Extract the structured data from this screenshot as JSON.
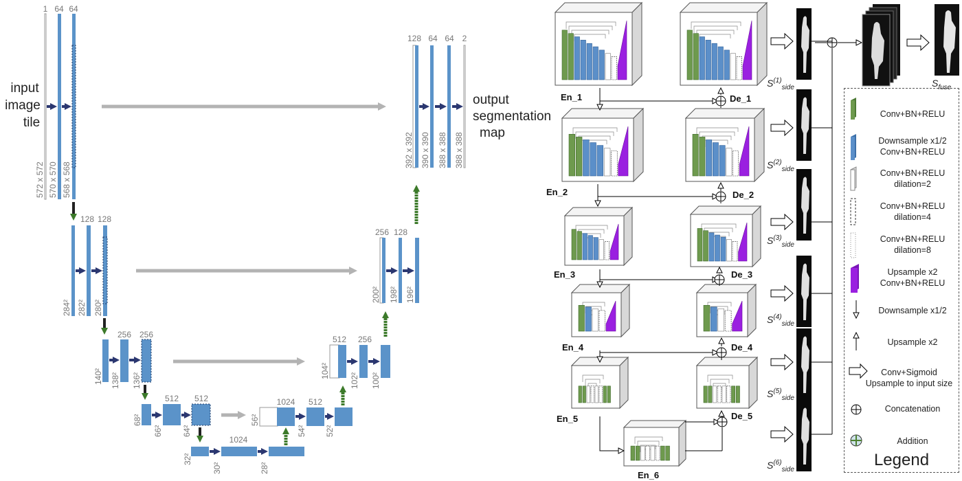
{
  "unet": {
    "input_label": [
      "input",
      "image",
      "tile"
    ],
    "output_label": [
      "output",
      "segmentation",
      "map"
    ],
    "channels": {
      "l1_enc": [
        "1",
        "64",
        "64"
      ],
      "l1_dec": [
        "128",
        "64",
        "64",
        "2"
      ],
      "l2_enc": [
        "128",
        "128"
      ],
      "l2_dec": [
        "256",
        "128"
      ],
      "l3_enc": [
        "256",
        "256"
      ],
      "l3_dec": [
        "512",
        "256"
      ],
      "l4_enc": [
        "512",
        "512"
      ],
      "l4_dec": [
        "1024",
        "512"
      ],
      "l5": [
        "1024"
      ]
    },
    "sizes": {
      "l1_enc": [
        "572 x 572",
        "570 x 570",
        "568 x 568"
      ],
      "l1_dec": [
        "392 x 392",
        "390 x 390",
        "388 x 388",
        "388 x 388"
      ],
      "l2_enc": [
        "284²",
        "282²",
        "280²"
      ],
      "l2_dec": [
        "200²",
        "198²",
        "196²"
      ],
      "l3_enc": [
        "140²",
        "138²",
        "136²"
      ],
      "l3_dec": [
        "104²",
        "102²",
        "100²"
      ],
      "l4_enc": [
        "68²",
        "66²",
        "64²"
      ],
      "l4_dec": [
        "56²",
        "54²",
        "52²"
      ],
      "l5": [
        "32²",
        "30²",
        "28²"
      ]
    }
  },
  "arch": {
    "encoders": [
      "En_1",
      "En_2",
      "En_3",
      "En_4",
      "En_5",
      "En_6"
    ],
    "decoders": [
      "De_1",
      "De_2",
      "De_3",
      "De_4",
      "De_5"
    ],
    "sides": [
      {
        "main": "S",
        "sup": "(1)",
        "sub": "side"
      },
      {
        "main": "S",
        "sup": "(2)",
        "sub": "side"
      },
      {
        "main": "S",
        "sup": "(3)",
        "sub": "side"
      },
      {
        "main": "S",
        "sup": "(4)",
        "sub": "side"
      },
      {
        "main": "S",
        "sup": "(5)",
        "sub": "side"
      },
      {
        "main": "S",
        "sup": "(6)",
        "sub": "side"
      }
    ],
    "fuse": {
      "main": "S",
      "sub": "fuse"
    }
  },
  "legend": {
    "title": "Legend",
    "items": [
      "Conv+BN+RELU",
      "Downsample x1/2\nConv+BN+RELU",
      "Conv+BN+RELU\ndilation=2",
      "Conv+BN+RELU\ndilation=4",
      "Conv+BN+RELU\ndilation=8",
      "Upsample x2\nConv+BN+RELU",
      "Downsample x1/2",
      "Upsample x2",
      "Conv+Sigmoid\nUpsample to input size",
      "Concatenation",
      "Addition"
    ]
  },
  "colors": {
    "conv": "#6e9a4e",
    "downsample": "#5b8fc9",
    "upsample": "#9a20e0",
    "unet_block": "#5b93c9",
    "unet_arrow": "#2b3770",
    "skip_arrow": "#b3b3b3",
    "up_arrow": "#4d8030"
  }
}
